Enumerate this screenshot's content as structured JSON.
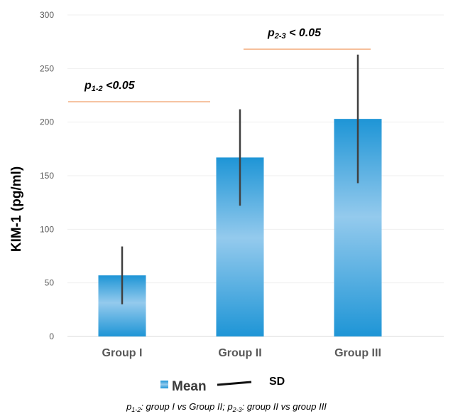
{
  "chart_data": {
    "type": "bar",
    "categories": [
      "Group I",
      "Group II",
      "Group III"
    ],
    "series": [
      {
        "name": "Mean",
        "values": [
          57,
          167,
          203
        ],
        "sd": [
          27,
          45,
          60
        ]
      }
    ],
    "ylabel": "KIM-1 (pg/ml)",
    "xlabel": "",
    "ylim": [
      0,
      300
    ],
    "yticks": [
      0,
      50,
      100,
      150,
      200,
      250,
      300
    ],
    "grid": true,
    "legend": {
      "placement": "bottom",
      "mean_label": "Mean",
      "sd_label": "SD"
    },
    "annotations": [
      {
        "p": "p",
        "sub": "1-2",
        "rest": "  <0.05",
        "from": 0,
        "to": 1,
        "y": 223
      },
      {
        "p": "p",
        "sub": "2-3",
        "rest": " < 0.05",
        "from": 1,
        "to": 2,
        "y": 272
      }
    ],
    "footnote": {
      "a": "p",
      "a_sub": "1-2",
      "a_text": ": group I vs Group II; ",
      "b": "p",
      "b_sub": "2-3",
      "b_text": ": group II vs group III"
    },
    "colors": {
      "bar_edge": "#2196d6",
      "bar_center": "#93c9ec",
      "error": "#404040",
      "annotation_line": "#f4b183",
      "grid": "#efefef"
    }
  }
}
